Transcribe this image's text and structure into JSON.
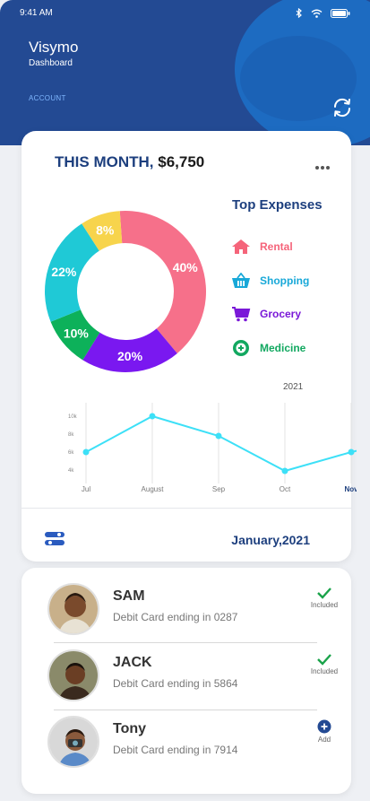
{
  "status_bar": {
    "time": "9:41 AM"
  },
  "header": {
    "app_name": "Visymo",
    "subtitle": "Dashboard",
    "account_label": "ACCOUNT"
  },
  "summary": {
    "period_label": "THIS MONTH,",
    "amount": "$6,750"
  },
  "legend": {
    "title": "Top Expenses",
    "items": [
      {
        "label": "Rental",
        "color": "#f5647a",
        "icon": "home-icon"
      },
      {
        "label": "Shopping",
        "color": "#18a8d8",
        "icon": "basket-icon"
      },
      {
        "label": "Grocery",
        "color": "#7a18d8",
        "icon": "cart-icon"
      },
      {
        "label": "Medicine",
        "color": "#12a860",
        "icon": "medicine-icon"
      }
    ]
  },
  "chart_data": [
    {
      "type": "pie",
      "subtype": "donut",
      "slices": [
        {
          "label": "40%",
          "value": 40,
          "color": "#f6708a"
        },
        {
          "label": "20%",
          "value": 20,
          "color": "#7a18f0"
        },
        {
          "label": "10%",
          "value": 10,
          "color": "#0db15a"
        },
        {
          "label": "22%",
          "value": 22,
          "color": "#1fc9d6"
        },
        {
          "label": "8%",
          "value": 8,
          "color": "#f7d44c"
        }
      ]
    },
    {
      "type": "line",
      "title": "2021",
      "categories": [
        "Jul",
        "August",
        "Sep",
        "Oct",
        "Nov"
      ],
      "highlight_category": "Nov",
      "y_ticks": [
        "10k",
        "8k",
        "6k",
        "4k"
      ],
      "ylim": [
        3000,
        11000
      ],
      "series": [
        {
          "x": [
            0,
            1,
            2,
            3,
            4,
            4.75
          ],
          "values": [
            6000,
            10000,
            7800,
            3900,
            6000,
            7300
          ],
          "color": "#3de0f7"
        }
      ],
      "grid": "vertical"
    }
  ],
  "footer": {
    "month": "January,2021"
  },
  "cards": [
    {
      "name": "SAM",
      "detail": "Debit Card ending in 0287",
      "status": "Included",
      "status_icon": "check-icon"
    },
    {
      "name": "JACK",
      "detail": "Debit Card ending in 5864",
      "status": "Included",
      "status_icon": "check-icon"
    },
    {
      "name": "Tony",
      "detail": "Debit Card ending in 7914",
      "status": "Add",
      "status_icon": "plus-icon"
    }
  ],
  "colors": {
    "header_bg": "#234a93",
    "accent": "#1d3f7e",
    "check": "#1aa34a"
  }
}
